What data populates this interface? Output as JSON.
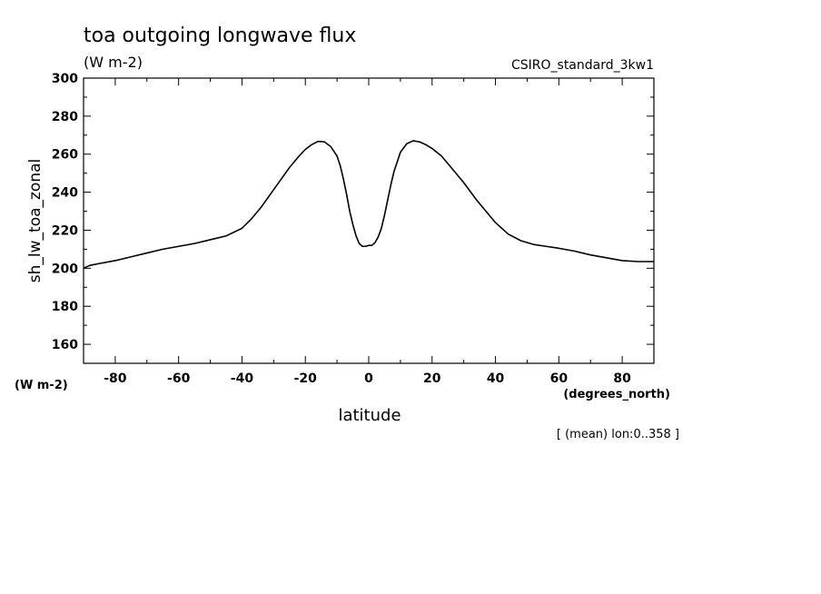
{
  "chart_data": {
    "type": "line",
    "title": "toa outgoing longwave flux",
    "subtitle": "(W m-2)",
    "model_label": "CSIRO_standard_3kw1",
    "ylabel": "sh_lw_toa_zonal",
    "y_units_label": "(W m-2)",
    "xlabel": "latitude",
    "x_units_label": "(degrees_north)",
    "note": "[ (mean) lon:0..358 ]",
    "xlim": [
      -90,
      90
    ],
    "ylim": [
      150,
      300
    ],
    "xticks": [
      -80,
      -60,
      -40,
      -20,
      0,
      20,
      40,
      60,
      80
    ],
    "xtick_labels": [
      "-80",
      "-60",
      "-40",
      "-20",
      "0",
      "20",
      "40",
      "60",
      "80"
    ],
    "yticks": [
      160,
      180,
      200,
      220,
      240,
      260,
      280,
      300
    ],
    "ytick_labels": [
      "160",
      "180",
      "200",
      "220",
      "240",
      "260",
      "280",
      "300"
    ],
    "grid": false,
    "series": [
      {
        "x": [
          -90,
          -88,
          -85,
          -80,
          -75,
          -70,
          -65,
          -60,
          -55,
          -50,
          -45,
          -40,
          -37,
          -34,
          -31,
          -28,
          -25,
          -22,
          -20,
          -18,
          -16,
          -14,
          -12,
          -10,
          -9,
          -8,
          -7,
          -6,
          -5,
          -4,
          -3,
          -2,
          -1,
          0,
          1,
          2,
          3,
          4,
          5,
          6,
          7,
          8,
          9,
          10,
          12,
          14,
          16,
          18,
          20,
          23,
          26,
          30,
          34,
          38,
          40,
          44,
          48,
          52,
          56,
          60,
          65,
          70,
          75,
          80,
          85,
          90
        ],
        "y": [
          200,
          201.5,
          202.5,
          204,
          206,
          208,
          210,
          211.5,
          213,
          215,
          217,
          221,
          226,
          232,
          239,
          246,
          253,
          259,
          262.5,
          265,
          266.7,
          266.5,
          264,
          259,
          254,
          247,
          239,
          230,
          223,
          217,
          213,
          211.5,
          211.5,
          212,
          212,
          213.5,
          216.5,
          221,
          228,
          236,
          244,
          251,
          256,
          261,
          265.5,
          267,
          266.5,
          265,
          263,
          259,
          253,
          245,
          236,
          228,
          224,
          218,
          214.5,
          212.5,
          211.5,
          210.5,
          209,
          207,
          205.5,
          204,
          203.5,
          203.5
        ]
      }
    ]
  }
}
